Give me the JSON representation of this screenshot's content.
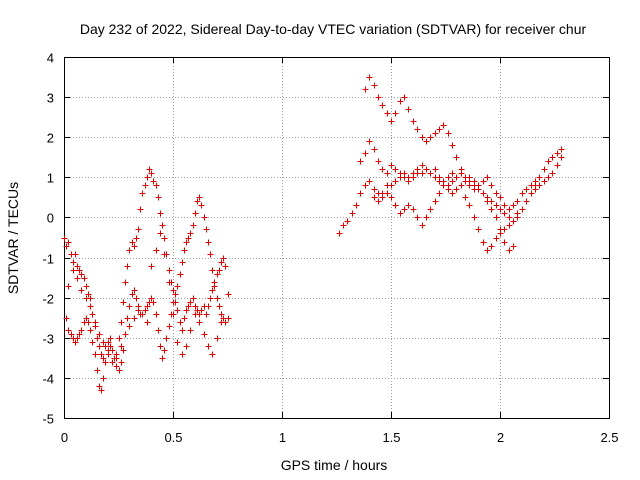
{
  "chart_data": {
    "type": "scatter",
    "title": "Day 232 of 2022, Sidereal Day-to-day VTEC variation (SDTVAR) for receiver chur",
    "xlabel": "GPS time / hours",
    "ylabel": "SDTVAR / TECUs",
    "xlim": [
      0,
      2.5
    ],
    "ylim": [
      -5,
      4
    ],
    "xticks": [
      "0",
      "0.5",
      "1",
      "1.5",
      "2",
      "2.5"
    ],
    "yticks": [
      "-5",
      "-4",
      "-3",
      "-2",
      "-1",
      "0",
      "1",
      "2",
      "3",
      "4"
    ],
    "grid": true,
    "marker": "+",
    "marker_color": "#e00000",
    "series": [
      {
        "name": "SDTVAR",
        "x": [
          0.0,
          0.01,
          0.02,
          0.03,
          0.04,
          0.05,
          0.06,
          0.07,
          0.08,
          0.09,
          0.1,
          0.11,
          0.12,
          0.13,
          0.14,
          0.15,
          0.16,
          0.17,
          0.18,
          0.19,
          0.2,
          0.21,
          0.22,
          0.23,
          0.24,
          0.25,
          0.26,
          0.27,
          0.28,
          0.29,
          0.3,
          0.31,
          0.32,
          0.33,
          0.34,
          0.35,
          0.36,
          0.37,
          0.38,
          0.39,
          0.4,
          0.41,
          0.42,
          0.43,
          0.44,
          0.45,
          0.46,
          0.47,
          0.48,
          0.49,
          0.5,
          0.51,
          0.52,
          0.53,
          0.54,
          0.55,
          0.56,
          0.57,
          0.58,
          0.59,
          0.6,
          0.61,
          0.62,
          0.63,
          0.64,
          0.65,
          0.66,
          0.67,
          0.68,
          0.69,
          0.7,
          0.71,
          0.72,
          0.73,
          0.74,
          0.75,
          0.01,
          0.02,
          0.03,
          0.04,
          0.05,
          0.06,
          0.07,
          0.08,
          0.09,
          0.1,
          0.11,
          0.12,
          0.13,
          0.14,
          0.15,
          0.16,
          0.17,
          0.18,
          0.19,
          0.2,
          0.21,
          0.22,
          0.23,
          0.24,
          0.25,
          0.26,
          0.27,
          0.28,
          0.29,
          0.3,
          0.31,
          0.32,
          0.33,
          0.34,
          0.35,
          0.36,
          0.37,
          0.38,
          0.39,
          0.4,
          0.41,
          0.42,
          0.43,
          0.44,
          0.45,
          0.46,
          0.47,
          0.48,
          0.49,
          0.5,
          0.51,
          0.52,
          0.53,
          0.54,
          0.55,
          0.56,
          0.57,
          0.58,
          0.59,
          0.6,
          0.61,
          0.62,
          0.63,
          0.64,
          0.65,
          0.66,
          0.67,
          0.68,
          0.69,
          0.7,
          0.71,
          0.72,
          0.73,
          0.74,
          0.75,
          0.02,
          0.04,
          0.06,
          0.08,
          0.1,
          0.12,
          0.14,
          0.16,
          0.18,
          0.2,
          0.22,
          0.24,
          0.26,
          0.28,
          0.3,
          0.32,
          0.34,
          0.36,
          0.38,
          0.4,
          0.42,
          0.44,
          0.46,
          0.48,
          0.5,
          0.52,
          0.54,
          0.56,
          0.58,
          0.6,
          0.62,
          0.64,
          0.66,
          0.68,
          0.7,
          0.72,
          1.26,
          1.28,
          1.3,
          1.32,
          1.34,
          1.36,
          1.38,
          1.4,
          1.42,
          1.44,
          1.46,
          1.48,
          1.5,
          1.52,
          1.54,
          1.56,
          1.58,
          1.6,
          1.62,
          1.64,
          1.66,
          1.68,
          1.7,
          1.72,
          1.74,
          1.76,
          1.78,
          1.8,
          1.82,
          1.84,
          1.86,
          1.88,
          1.9,
          1.92,
          1.94,
          1.96,
          1.98,
          2.0,
          2.02,
          2.04,
          2.06,
          2.08,
          2.1,
          2.12,
          2.14,
          2.16,
          2.18,
          2.2,
          2.22,
          2.24,
          2.26,
          2.28,
          1.38,
          1.4,
          1.42,
          1.44,
          1.46,
          1.48,
          1.5,
          1.52,
          1.54,
          1.56,
          1.58,
          1.6,
          1.62,
          1.64,
          1.66,
          1.68,
          1.7,
          1.72,
          1.74,
          1.76,
          1.78,
          1.8,
          1.82,
          1.84,
          1.86,
          1.88,
          1.9,
          1.92,
          1.94,
          1.96,
          1.98,
          2.0,
          2.02,
          2.04,
          2.06,
          2.08,
          2.1,
          2.12,
          2.14,
          2.16,
          2.18,
          2.2,
          2.22,
          2.24,
          2.26,
          2.28,
          1.36,
          1.38,
          1.4,
          1.42,
          1.44,
          1.46,
          1.48,
          1.5,
          1.52,
          1.54,
          1.56,
          1.58,
          1.6,
          1.62,
          1.64,
          1.66,
          1.68,
          1.7,
          1.72,
          1.74,
          1.76,
          1.78,
          1.8,
          1.82,
          1.84,
          1.86,
          1.88,
          1.9,
          1.92,
          1.94,
          1.96,
          1.98,
          2.0,
          2.02,
          2.04,
          2.06,
          1.42,
          1.44,
          1.46,
          1.48,
          1.5,
          1.52,
          1.54,
          1.56,
          1.58,
          1.6,
          1.62,
          1.64,
          1.66,
          1.68,
          1.7,
          1.72,
          1.74,
          1.76,
          1.78,
          1.8,
          1.82,
          1.84,
          1.86,
          1.88,
          1.9,
          1.92,
          1.94,
          1.96,
          1.98,
          2.0,
          2.02,
          2.04,
          2.06,
          2.08,
          2.1,
          2.12,
          2.14,
          2.16,
          2.18,
          2.2,
          2.22,
          2.24,
          2.26,
          2.28
        ],
        "y": [
          -0.5,
          -0.7,
          -0.6,
          -0.9,
          -1.1,
          -0.9,
          -1.2,
          -1.3,
          -1.4,
          -1.5,
          -1.7,
          -1.9,
          -2.0,
          -2.4,
          -2.7,
          -3.0,
          -3.2,
          -3.4,
          -3.5,
          -3.2,
          -3.1,
          -3.0,
          -3.3,
          -3.5,
          -3.4,
          -3.0,
          -2.6,
          -2.1,
          -1.6,
          -1.2,
          -0.8,
          -0.6,
          -0.7,
          -0.5,
          -0.3,
          0.2,
          0.6,
          0.8,
          1.0,
          1.2,
          1.1,
          0.9,
          0.8,
          0.5,
          0.1,
          -0.2,
          -0.5,
          -0.9,
          -1.3,
          -1.6,
          -1.8,
          -2.1,
          -2.3,
          -2.6,
          -2.8,
          -2.5,
          -2.3,
          -2.2,
          -2.1,
          -2.0,
          -2.2,
          -2.3,
          -2.4,
          -2.3,
          -2.2,
          -2.4,
          -2.2,
          -2.0,
          -1.8,
          -1.6,
          -1.4,
          -1.3,
          -1.1,
          -1.0,
          -1.2,
          -1.9,
          -2.5,
          -2.8,
          -2.9,
          -3.0,
          -3.1,
          -3.0,
          -2.9,
          -2.8,
          -2.6,
          -2.5,
          -2.6,
          -2.8,
          -3.1,
          -3.4,
          -3.8,
          -4.2,
          -4.3,
          -4.0,
          -3.6,
          -3.4,
          -3.2,
          -3.3,
          -3.5,
          -3.7,
          -3.8,
          -3.6,
          -3.3,
          -2.9,
          -2.5,
          -2.2,
          -1.9,
          -1.8,
          -2.0,
          -2.2,
          -2.4,
          -2.4,
          -2.3,
          -2.2,
          -2.1,
          -2.0,
          -2.1,
          -2.4,
          -2.8,
          -3.2,
          -3.5,
          -3.3,
          -3.0,
          -2.7,
          -2.4,
          -2.1,
          -1.9,
          -1.7,
          -1.4,
          -1.1,
          -0.8,
          -0.6,
          -0.5,
          -0.4,
          -0.2,
          0.1,
          0.4,
          0.5,
          0.3,
          0.0,
          -0.3,
          -0.6,
          -0.9,
          -1.3,
          -1.7,
          -2.0,
          -2.2,
          -2.4,
          -2.5,
          -2.6,
          -2.5,
          -1.7,
          -1.3,
          -1.5,
          -1.8,
          -2.0,
          -2.2,
          -2.6,
          -2.9,
          -3.1,
          -3.3,
          -3.6,
          -3.5,
          -3.2,
          -2.9,
          -2.7,
          -2.5,
          -2.3,
          -2.4,
          -2.6,
          -1.2,
          -0.8,
          -0.4,
          -0.9,
          -1.6,
          -2.4,
          -3.1,
          -3.4,
          -3.2,
          -2.8,
          -2.4,
          -2.6,
          -2.9,
          -3.2,
          -3.4,
          -3.0,
          -2.6,
          -0.4,
          -0.2,
          -0.1,
          0.1,
          0.3,
          0.6,
          0.8,
          0.9,
          0.7,
          0.6,
          0.5,
          0.6,
          0.8,
          0.9,
          1.0,
          1.1,
          1.0,
          1.1,
          1.2,
          1.3,
          1.2,
          1.1,
          1.2,
          1.0,
          0.9,
          0.8,
          0.9,
          1.0,
          1.1,
          1.0,
          0.9,
          0.8,
          0.7,
          0.6,
          0.5,
          0.4,
          0.3,
          0.2,
          0.1,
          0.0,
          -0.1,
          0.0,
          0.2,
          0.4,
          0.6,
          0.7,
          0.8,
          0.9,
          1.0,
          1.1,
          1.3,
          1.5,
          3.2,
          3.5,
          3.3,
          3.0,
          2.8,
          2.6,
          2.4,
          2.6,
          2.9,
          3.0,
          2.7,
          2.4,
          2.2,
          2.0,
          1.9,
          2.0,
          2.1,
          2.2,
          2.3,
          2.1,
          1.8,
          1.5,
          1.2,
          1.0,
          0.8,
          0.7,
          0.8,
          0.9,
          1.0,
          0.8,
          0.6,
          0.5,
          0.3,
          0.2,
          0.3,
          0.4,
          0.6,
          0.7,
          0.8,
          0.9,
          0.8,
          0.9,
          1.0,
          1.1,
          1.3,
          1.5,
          1.4,
          1.6,
          1.9,
          1.7,
          1.4,
          1.2,
          1.1,
          1.3,
          1.2,
          1.1,
          1.0,
          0.9,
          1.0,
          1.1,
          1.1,
          1.2,
          1.1,
          1.0,
          0.9,
          0.8,
          0.7,
          0.6,
          0.7,
          0.8,
          0.9,
          1.0,
          0.9,
          0.8,
          0.6,
          0.4,
          0.2,
          0.0,
          -0.3,
          -0.6,
          -0.8,
          -0.7,
          0.5,
          0.4,
          0.6,
          0.8,
          0.5,
          0.3,
          0.1,
          0.2,
          0.3,
          0.2,
          0.0,
          -0.2,
          0.0,
          0.2,
          0.4,
          0.6,
          0.8,
          1.0,
          1.1,
          1.0,
          0.8,
          0.5,
          0.3,
          0.0,
          -0.3,
          -0.6,
          -0.8,
          -0.7,
          -0.5,
          -0.4,
          -0.3,
          -0.2,
          -0.1,
          0.1,
          0.2,
          0.4,
          0.6,
          0.8,
          1.0,
          1.2,
          1.4,
          1.5,
          1.6,
          1.7
        ]
      }
    ]
  }
}
